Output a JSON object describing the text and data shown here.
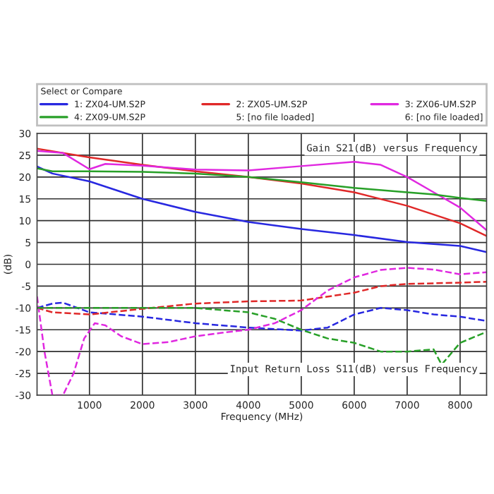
{
  "chart_data": {
    "type": "line",
    "legend_title": "Select or Compare",
    "xlabel": "Frequency (MHz)",
    "ylabel": "(dB)",
    "xlim": [
      10,
      8500
    ],
    "xticks": [
      1000,
      2000,
      3000,
      4000,
      5000,
      6000,
      7000,
      8000
    ],
    "ylim": [
      -30,
      30
    ],
    "yticks": [
      -30,
      -25,
      -20,
      -15,
      -10,
      -5,
      0,
      5,
      10,
      15,
      20,
      25,
      30
    ],
    "grid": true,
    "legend": "top",
    "annotations": [
      "5: [no file loaded]",
      "6: [no file loaded]",
      "Gain S21(dB) versus Frequency",
      "Input Return Loss S11(dB) versus Frequency"
    ],
    "series": [
      {
        "name": "1: ZX04-UM.S2P",
        "color": "#2828e0",
        "line_style": "solid",
        "x": [
          10,
          300,
          1000,
          2000,
          3000,
          4000,
          5000,
          6000,
          7000,
          8000,
          8500
        ],
        "values": [
          22.4,
          20.8,
          19,
          15,
          12,
          9.7,
          8.1,
          6.7,
          5.1,
          4.2,
          2.8
        ]
      },
      {
        "name": "2: ZX05-UM.S2P",
        "color": "#e02828",
        "line_style": "solid",
        "x": [
          10,
          1000,
          2000,
          3000,
          4000,
          5000,
          6000,
          7000,
          8000,
          8500
        ],
        "values": [
          26.5,
          24.5,
          22.8,
          21.3,
          20,
          18.5,
          16.5,
          13.4,
          9.4,
          6.5
        ]
      },
      {
        "name": "3: ZX06-UM.S2P",
        "color": "#e028e0",
        "line_style": "solid",
        "x": [
          10,
          500,
          1000,
          1300,
          2000,
          3000,
          4000,
          5000,
          6000,
          6500,
          7000,
          7500,
          8000,
          8500
        ],
        "values": [
          26,
          25.5,
          21.8,
          23,
          22.6,
          21.7,
          21.5,
          22.5,
          23.5,
          22.8,
          20,
          16.5,
          13,
          7.8
        ]
      },
      {
        "name": "4: ZX09-UM.S2P",
        "color": "#28a028",
        "line_style": "solid",
        "x": [
          10,
          300,
          1000,
          2000,
          3000,
          4000,
          5000,
          6000,
          7000,
          7500,
          8000,
          8500
        ],
        "values": [
          22,
          21.3,
          21.3,
          21.2,
          20.8,
          20,
          18.8,
          17.5,
          16.5,
          16,
          15.2,
          14.5
        ]
      },
      {
        "color": "#2828e0",
        "line_style": "dashed",
        "x": [
          10,
          300,
          500,
          1000,
          2000,
          3000,
          4000,
          5000,
          5500,
          6000,
          6500,
          7000,
          7500,
          8000,
          8500
        ],
        "values": [
          -10,
          -9,
          -8.8,
          -11,
          -12,
          -13.5,
          -14.5,
          -15.2,
          -14.5,
          -11.5,
          -10,
          -10.5,
          -11.5,
          -12,
          -13
        ]
      },
      {
        "color": "#e02828",
        "line_style": "dashed",
        "x": [
          10,
          300,
          1000,
          2000,
          3000,
          4000,
          5000,
          6000,
          6500,
          7000,
          8000,
          8500
        ],
        "values": [
          -10,
          -11,
          -11.5,
          -10.2,
          -9,
          -8.5,
          -8.3,
          -6.5,
          -5,
          -4.5,
          -4.2,
          -4
        ]
      },
      {
        "color": "#e028e0",
        "line_style": "dashed",
        "x": [
          10,
          150,
          300,
          500,
          700,
          900,
          1100,
          1300,
          1600,
          2000,
          2500,
          3000,
          3500,
          4000,
          4500,
          5000,
          5500,
          6000,
          6500,
          7000,
          7500,
          8000,
          8500
        ],
        "values": [
          -7.4,
          -20,
          -30,
          -30,
          -25,
          -17,
          -13.5,
          -14,
          -16.5,
          -18.3,
          -17.8,
          -16.5,
          -15.7,
          -15,
          -13.5,
          -10.5,
          -6,
          -3,
          -1.3,
          -0.8,
          -1.2,
          -2.3,
          -1.8
        ]
      },
      {
        "color": "#28a028",
        "line_style": "dashed",
        "x": [
          10,
          1000,
          2000,
          3000,
          4000,
          4500,
          5000,
          5500,
          6000,
          6500,
          7000,
          7500,
          7650,
          8000,
          8500
        ],
        "values": [
          -10,
          -10,
          -10,
          -10,
          -11,
          -12.5,
          -15,
          -17,
          -18,
          -20,
          -20,
          -19.5,
          -23,
          -18,
          -15.5
        ]
      }
    ]
  }
}
